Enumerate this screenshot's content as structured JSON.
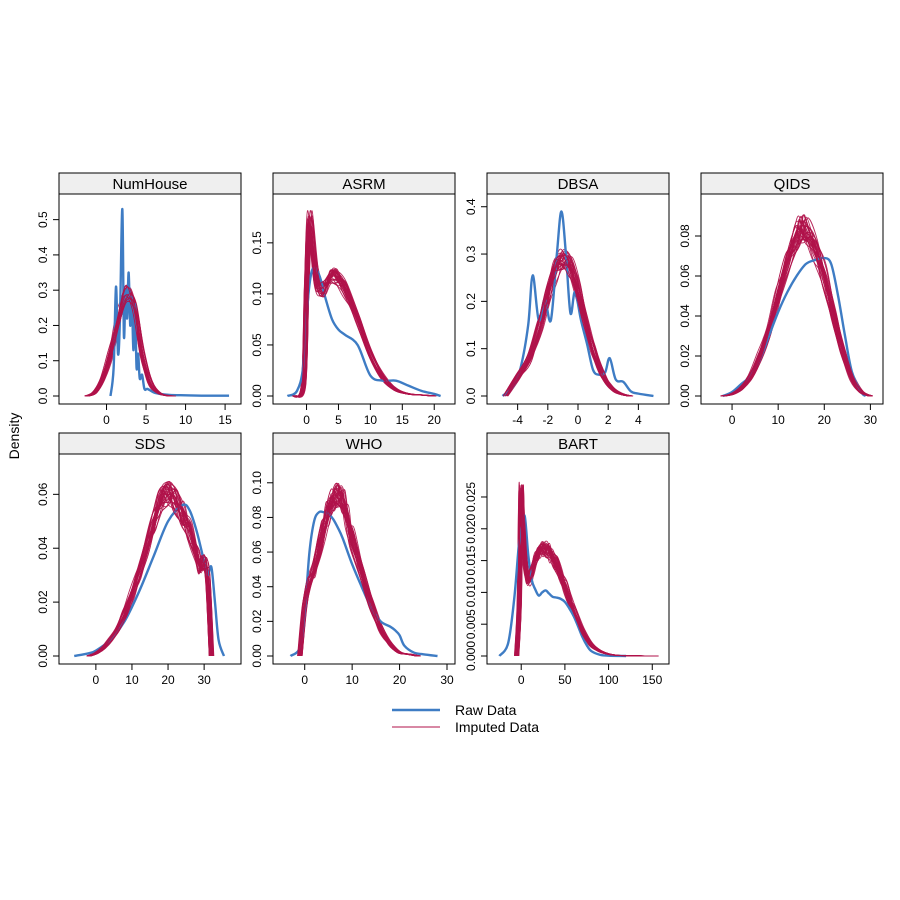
{
  "figure": {
    "ylabel": "Density",
    "legend": [
      {
        "label": "Raw Data",
        "color": "#3E7CC4",
        "width": 2.4
      },
      {
        "label": "Imputed Data",
        "color": "#B0124A",
        "width": 1
      }
    ]
  },
  "chart_data": [
    {
      "type": "line",
      "title": "NumHouse",
      "xlim": [
        -5,
        16
      ],
      "ylim": [
        0,
        0.55
      ],
      "xticks": [
        0,
        5,
        10,
        15
      ],
      "yticks": [
        0,
        0.1,
        0.2,
        0.3,
        0.4,
        0.5
      ],
      "xtick_labels": [
        "0",
        "5",
        "10",
        "15"
      ],
      "ytick_labels": [
        "0.0",
        "0.1",
        "0.2",
        "0.3",
        "0.4",
        "0.5"
      ],
      "series": [
        {
          "name": "Raw Data",
          "x": [
            0.5,
            0.9,
            1.2,
            1.45,
            1.7,
            2.0,
            2.2,
            2.4,
            2.6,
            2.8,
            3.0,
            3.2,
            3.4,
            3.6,
            3.8,
            4.0,
            4.2,
            4.5,
            4.8,
            5.2,
            6,
            7,
            8,
            10,
            12,
            15.5
          ],
          "y": [
            0,
            0.08,
            0.31,
            0.12,
            0.22,
            0.53,
            0.17,
            0.3,
            0.22,
            0.35,
            0.2,
            0.28,
            0.13,
            0.26,
            0.08,
            0.12,
            0.05,
            0.06,
            0.02,
            0.02,
            0.01,
            0.005,
            0.003,
            0.002,
            0.001,
            0.001
          ]
        },
        {
          "name": "Imputed Data",
          "x": [
            -2.5,
            -1.5,
            -0.5,
            0.5,
            1.5,
            2.5,
            3.5,
            4.5,
            5.5,
            6.5,
            7.5,
            8.5
          ],
          "y": [
            0,
            0.01,
            0.05,
            0.12,
            0.22,
            0.29,
            0.25,
            0.12,
            0.04,
            0.01,
            0.002,
            0
          ]
        }
      ]
    },
    {
      "type": "line",
      "title": "ASRM",
      "xlim": [
        -4,
        22
      ],
      "ylim": [
        0,
        0.19
      ],
      "xticks": [
        0,
        5,
        10,
        15,
        20
      ],
      "yticks": [
        0,
        0.05,
        0.1,
        0.15
      ],
      "xtick_labels": [
        "0",
        "5",
        "10",
        "15",
        "20"
      ],
      "ytick_labels": [
        "0.00",
        "0.05",
        "0.10",
        "0.15"
      ],
      "series": [
        {
          "name": "Raw Data",
          "x": [
            -3,
            -1.5,
            -0.5,
            0.3,
            1,
            2,
            3,
            4,
            5,
            6,
            8,
            10,
            12,
            14,
            16,
            18,
            20,
            21
          ],
          "y": [
            0,
            0.005,
            0.03,
            0.1,
            0.125,
            0.118,
            0.095,
            0.075,
            0.065,
            0.06,
            0.05,
            0.02,
            0.015,
            0.015,
            0.01,
            0.005,
            0.002,
            0
          ]
        },
        {
          "name": "Imputed Data",
          "x": [
            -2,
            -0.5,
            0,
            0.5,
            1.5,
            2.5,
            3.5,
            4.5,
            6,
            8,
            10,
            12,
            14,
            16,
            18,
            20
          ],
          "y": [
            0,
            0.01,
            0.1,
            0.17,
            0.115,
            0.105,
            0.115,
            0.118,
            0.105,
            0.075,
            0.042,
            0.018,
            0.006,
            0.002,
            0.001,
            0
          ]
        }
      ]
    },
    {
      "type": "line",
      "title": "DBSA",
      "xlim": [
        -5.5,
        5.5
      ],
      "ylim": [
        0,
        0.41
      ],
      "xticks": [
        -4,
        -2,
        0,
        2,
        4
      ],
      "yticks": [
        0,
        0.1,
        0.2,
        0.3,
        0.4
      ],
      "xtick_labels": [
        "-4",
        "-2",
        "0",
        "2",
        "4"
      ],
      "ytick_labels": [
        "0.0",
        "0.1",
        "0.2",
        "0.3",
        "0.4"
      ],
      "series": [
        {
          "name": "Raw Data",
          "x": [
            -5,
            -4.3,
            -3.8,
            -3.3,
            -3.0,
            -2.6,
            -2.2,
            -1.8,
            -1.4,
            -1.1,
            -0.8,
            -0.5,
            -0.2,
            0.2,
            0.6,
            1.0,
            1.4,
            1.8,
            2.1,
            2.5,
            3.0,
            3.5,
            4.0,
            5.0
          ],
          "y": [
            0,
            0.02,
            0.06,
            0.15,
            0.255,
            0.16,
            0.205,
            0.16,
            0.3,
            0.39,
            0.3,
            0.175,
            0.22,
            0.16,
            0.11,
            0.055,
            0.045,
            0.05,
            0.08,
            0.035,
            0.03,
            0.01,
            0.005,
            0
          ]
        },
        {
          "name": "Imputed Data",
          "x": [
            -4.8,
            -4,
            -3.2,
            -2.5,
            -2,
            -1.5,
            -1,
            -0.5,
            0,
            0.5,
            1,
            1.5,
            2,
            2.5,
            3,
            3.5
          ],
          "y": [
            0,
            0.04,
            0.08,
            0.15,
            0.21,
            0.265,
            0.29,
            0.275,
            0.225,
            0.16,
            0.1,
            0.055,
            0.025,
            0.01,
            0.003,
            0
          ]
        }
      ]
    },
    {
      "type": "line",
      "title": "QIDS",
      "xlim": [
        -5,
        31
      ],
      "ylim": [
        0,
        0.097
      ],
      "xticks": [
        0,
        10,
        20,
        30
      ],
      "yticks": [
        0,
        0.02,
        0.04,
        0.06,
        0.08
      ],
      "xtick_labels": [
        "0",
        "10",
        "20",
        "30"
      ],
      "ytick_labels": [
        "0.00",
        "0.02",
        "0.04",
        "0.06",
        "0.08"
      ],
      "series": [
        {
          "name": "Raw Data",
          "x": [
            -2,
            0,
            2,
            4,
            6,
            8,
            10,
            12,
            14,
            16,
            18,
            20,
            21.5,
            23,
            24.5,
            26,
            28,
            29
          ],
          "y": [
            0,
            0.002,
            0.006,
            0.01,
            0.018,
            0.03,
            0.042,
            0.052,
            0.06,
            0.066,
            0.068,
            0.069,
            0.066,
            0.05,
            0.03,
            0.012,
            0.002,
            0
          ]
        },
        {
          "name": "Imputed Data",
          "x": [
            -2,
            0,
            2,
            4,
            6,
            8,
            10,
            12,
            14,
            15,
            16,
            18,
            20,
            22,
            24,
            26,
            28,
            30
          ],
          "y": [
            0,
            0.001,
            0.004,
            0.01,
            0.02,
            0.034,
            0.05,
            0.067,
            0.08,
            0.084,
            0.083,
            0.074,
            0.06,
            0.04,
            0.022,
            0.009,
            0.002,
            0
          ]
        }
      ]
    },
    {
      "type": "line",
      "title": "SDS",
      "xlim": [
        -8,
        38
      ],
      "ylim": [
        0,
        0.072
      ],
      "xticks": [
        0,
        10,
        20,
        30
      ],
      "yticks": [
        0,
        0.02,
        0.04,
        0.06
      ],
      "xtick_labels": [
        "0",
        "10",
        "20",
        "30"
      ],
      "ytick_labels": [
        "0.00",
        "0.02",
        "0.04",
        "0.06"
      ],
      "series": [
        {
          "name": "Raw Data",
          "x": [
            -6,
            -2,
            0,
            4,
            8,
            12,
            16,
            20,
            24,
            26,
            28,
            30,
            31,
            32,
            33,
            34,
            35.5
          ],
          "y": [
            0,
            0.001,
            0.002,
            0.006,
            0.013,
            0.024,
            0.037,
            0.05,
            0.056,
            0.054,
            0.046,
            0.035,
            0.03,
            0.033,
            0.02,
            0.006,
            0
          ]
        },
        {
          "name": "Imputed Data",
          "x": [
            -2,
            0,
            2,
            4,
            6,
            8,
            10,
            12,
            14,
            16,
            18,
            20,
            22,
            24,
            26,
            28,
            29,
            30,
            31,
            32
          ],
          "y": [
            0,
            0.001,
            0.003,
            0.006,
            0.01,
            0.016,
            0.023,
            0.031,
            0.04,
            0.05,
            0.057,
            0.06,
            0.058,
            0.053,
            0.046,
            0.038,
            0.033,
            0.035,
            0.028,
            0
          ]
        }
      ]
    },
    {
      "type": "line",
      "title": "WHO",
      "xlim": [
        -5,
        30
      ],
      "ylim": [
        0,
        0.112
      ],
      "xticks": [
        0,
        10,
        20,
        30
      ],
      "yticks": [
        0,
        0.02,
        0.04,
        0.06,
        0.08,
        0.1
      ],
      "xtick_labels": [
        "0",
        "10",
        "20",
        "30"
      ],
      "ytick_labels": [
        "0.00",
        "0.02",
        "0.04",
        "0.06",
        "0.08",
        "0.10"
      ],
      "series": [
        {
          "name": "Raw Data",
          "x": [
            -3,
            -1,
            0,
            1,
            2,
            3,
            4,
            5,
            6,
            7,
            8,
            10,
            12,
            14,
            16,
            18,
            19,
            20,
            21,
            23,
            25,
            28
          ],
          "y": [
            0,
            0.005,
            0.025,
            0.06,
            0.078,
            0.083,
            0.083,
            0.082,
            0.079,
            0.074,
            0.068,
            0.053,
            0.04,
            0.028,
            0.02,
            0.017,
            0.015,
            0.012,
            0.006,
            0.002,
            0.001,
            0
          ]
        },
        {
          "name": "Imputed Data",
          "x": [
            -1,
            0,
            1,
            2,
            3,
            4,
            5,
            6,
            7,
            8,
            9,
            10,
            12,
            14,
            16,
            18,
            20,
            22,
            24
          ],
          "y": [
            0,
            0.03,
            0.042,
            0.05,
            0.062,
            0.073,
            0.083,
            0.09,
            0.093,
            0.089,
            0.08,
            0.068,
            0.048,
            0.03,
            0.016,
            0.007,
            0.002,
            0.001,
            0
          ]
        }
      ]
    },
    {
      "type": "line",
      "title": "BART",
      "xlim": [
        -30,
        160
      ],
      "ylim": [
        0,
        0.0305
      ],
      "xticks": [
        0,
        50,
        100,
        150
      ],
      "yticks": [
        0,
        0.005,
        0.01,
        0.015,
        0.02,
        0.025
      ],
      "xtick_labels": [
        "0",
        "50",
        "100",
        "150"
      ],
      "ytick_labels": [
        "0.000",
        "0.005",
        "0.010",
        "0.015",
        "0.020",
        "0.025"
      ],
      "series": [
        {
          "name": "Raw Data",
          "x": [
            -25,
            -15,
            -8,
            -3,
            0,
            4,
            8,
            12,
            16,
            20,
            24,
            28,
            32,
            36,
            40,
            45,
            50,
            55,
            60,
            65,
            70,
            75,
            80,
            90,
            100,
            120
          ],
          "y": [
            0,
            0.002,
            0.009,
            0.017,
            0.02,
            0.022,
            0.016,
            0.012,
            0.0105,
            0.0095,
            0.01,
            0.0103,
            0.0098,
            0.0093,
            0.0092,
            0.009,
            0.0085,
            0.0075,
            0.0063,
            0.0047,
            0.003,
            0.0017,
            0.0008,
            0.0002,
            5e-05,
            0
          ]
        },
        {
          "name": "Imputed Data",
          "x": [
            -5,
            -2,
            0,
            2,
            5,
            8,
            12,
            16,
            20,
            25,
            30,
            35,
            40,
            45,
            50,
            55,
            60,
            70,
            80,
            90,
            100,
            110,
            120,
            140,
            155
          ],
          "y": [
            0,
            0.008,
            0.025,
            0.02,
            0.014,
            0.012,
            0.013,
            0.015,
            0.016,
            0.0168,
            0.0167,
            0.0158,
            0.0145,
            0.013,
            0.011,
            0.009,
            0.0072,
            0.004,
            0.0018,
            0.0008,
            0.0003,
            0.0001,
            5e-05,
            1e-05,
            0
          ]
        }
      ]
    }
  ]
}
